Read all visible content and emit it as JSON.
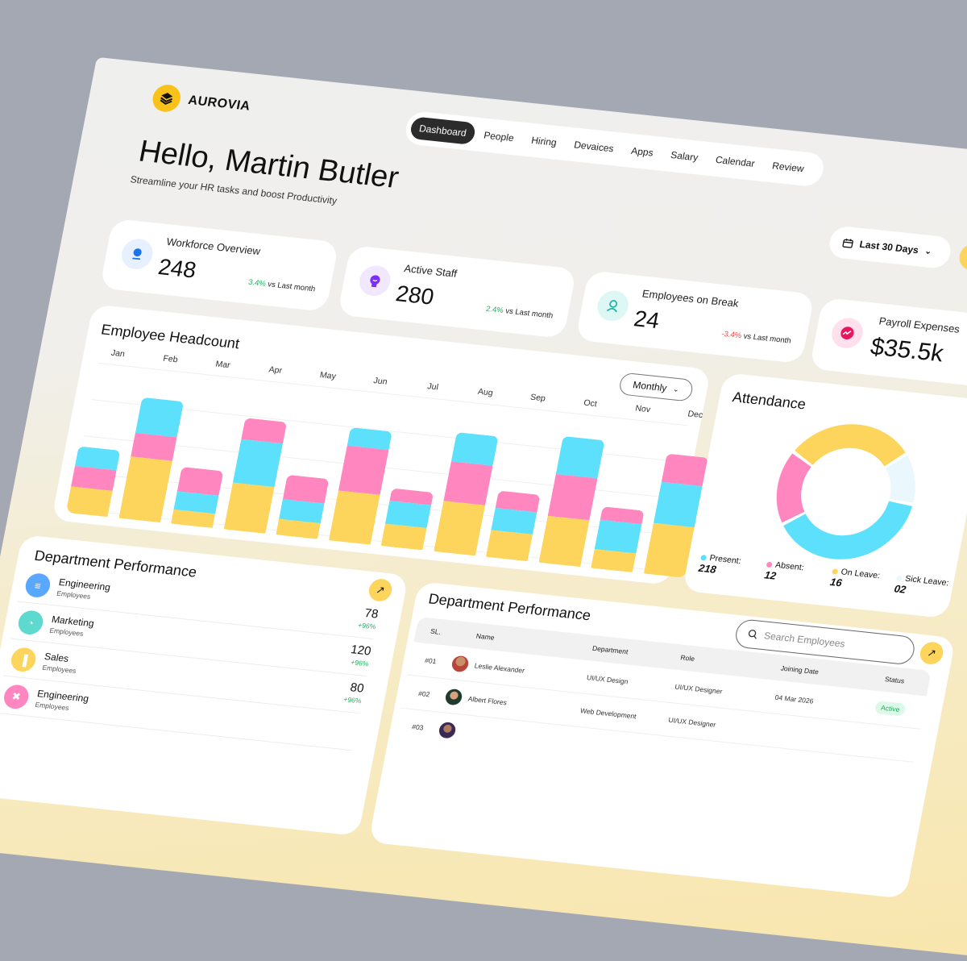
{
  "brand": {
    "name": "AUROVIA"
  },
  "nav": {
    "items": [
      "Dashboard",
      "People",
      "Hiring",
      "Devaices",
      "Apps",
      "Salary",
      "Calendar",
      "Review"
    ],
    "active": "Dashboard"
  },
  "greeting": {
    "title": "Hello, Martin Butler",
    "subtitle": "Streamline your HR tasks and boost Productivity"
  },
  "date_filter": {
    "label": "Last 30 Days"
  },
  "stats": [
    {
      "title": "Workforce Overview",
      "value": "248",
      "change": "3.4%",
      "change_suffix": "vs Last month",
      "trend": "up",
      "icon": "user-icon",
      "icon_color": "#1a73e8",
      "icon_bg": "#e6f0ff"
    },
    {
      "title": "Active Staff",
      "value": "280",
      "change": "2.4%",
      "change_suffix": "vs Last month",
      "trend": "up",
      "icon": "user-badge-icon",
      "icon_color": "#7b2ff7",
      "icon_bg": "#f1e8ff"
    },
    {
      "title": "Employees on Break",
      "value": "24",
      "change": "-3.4%",
      "change_suffix": "vs Last month",
      "trend": "down",
      "icon": "user-pause-icon",
      "icon_color": "#22b5a8",
      "icon_bg": "#ddf7f4"
    },
    {
      "title": "Payroll Expenses",
      "value": "$35.5k",
      "icon": "trend-up-icon",
      "icon_color": "#e8175d",
      "icon_bg": "#ffe0ec"
    }
  ],
  "colors": {
    "up": "#22b35e",
    "down": "#f04444",
    "yellow": "#fdd55c",
    "pink": "#ff86bf",
    "cyan": "#5ce0fb",
    "light": "#eaf8fd"
  },
  "headcount": {
    "title": "Employee Headcount",
    "period_select": "Monthly"
  },
  "chart_data": [
    {
      "type": "bar",
      "stacked": true,
      "title": "Employee Headcount",
      "categories": [
        "Jan",
        "Feb",
        "Mar",
        "Apr",
        "May",
        "Jun",
        "Jul",
        "Aug",
        "Sep",
        "Oct",
        "Nov",
        "Dec"
      ],
      "ylim": [
        0,
        180
      ],
      "grid": true,
      "series": [
        {
          "color": "#fdd55c",
          "values": [
            32,
            76,
            18,
            58,
            20,
            62,
            27,
            63,
            33,
            58,
            23,
            63
          ]
        },
        {
          "color": "#ff86bf",
          "values": [
            26,
            30,
            30,
            26,
            30,
            55,
            15,
            49,
            21,
            52,
            16,
            36
          ]
        },
        {
          "color": "#5ce0fb",
          "values": [
            24,
            44,
            22,
            54,
            24,
            23,
            29,
            36,
            28,
            47,
            37,
            50
          ]
        }
      ],
      "top_segment_series": [
        2,
        2,
        1,
        1,
        1,
        2,
        1,
        2,
        1,
        2,
        1,
        1
      ]
    },
    {
      "type": "pie",
      "donut": true,
      "title": "Attendance",
      "segments": [
        {
          "label": "On Leave:",
          "value": "16",
          "color": "#fdd55c",
          "share_pct": 30.5
        },
        {
          "label": "Sick Leave:",
          "value": "02",
          "color": "#eaf8fd",
          "share_pct": 12.5
        },
        {
          "label": "Present:",
          "value": "218",
          "color": "#5ce0fb",
          "share_pct": 39
        },
        {
          "label": "Absent:",
          "value": "12",
          "color": "#ff86bf",
          "share_pct": 18
        }
      ]
    }
  ],
  "attendance": {
    "title": "Attendance",
    "legend": [
      {
        "label": "Present:",
        "value": "218",
        "color": "#5ce0fb"
      },
      {
        "label": "Absent:",
        "value": "12",
        "color": "#ff86bf"
      },
      {
        "label": "On Leave:",
        "value": "16",
        "color": "#fdd55c"
      },
      {
        "label": "Sick Leave:",
        "value": "02",
        "color": "#eaf8fd"
      }
    ]
  },
  "dept_list": {
    "title": "Department Performance",
    "items": [
      {
        "name": "Engineering",
        "sub": "Employees",
        "value": "78",
        "change": "+96%",
        "color": "#5aa7ff",
        "icon": "layers-icon"
      },
      {
        "name": "Marketing",
        "sub": "Employees",
        "value": "120",
        "change": "+96%",
        "color": "#5dd9cf",
        "icon": "pie-chart-icon"
      },
      {
        "name": "Sales",
        "sub": "Employees",
        "value": "80",
        "change": "+96%",
        "color": "#fdd55c",
        "icon": "bar-chart-icon"
      },
      {
        "name": "Engineering",
        "sub": "Employees",
        "color": "#ff86bf",
        "icon": "tools-icon"
      }
    ]
  },
  "employee_table": {
    "title": "Department Performance",
    "search_placeholder": "Search Employees",
    "columns": [
      "SL.",
      "Name",
      "Department",
      "Role",
      "Joining Date",
      "Status"
    ],
    "rows": [
      {
        "sl": "#01",
        "name": "Leslie Alexander",
        "department": "UI/UX Design",
        "role": "UI/UX Designer",
        "joining_date": "04 Mar 2026",
        "status": "Active"
      },
      {
        "sl": "#02",
        "name": "Albert Flores",
        "department": "Web Development",
        "role": "UI/UX Designer"
      },
      {
        "sl": "#03"
      }
    ]
  }
}
